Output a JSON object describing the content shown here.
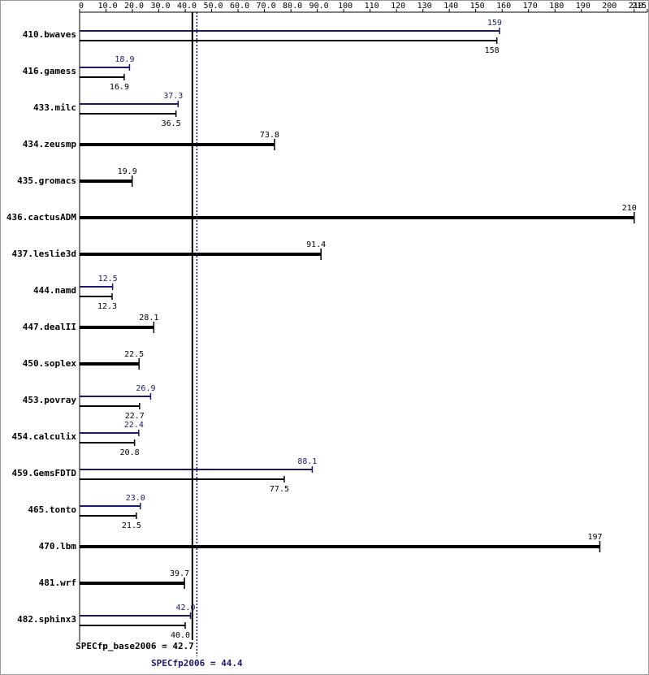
{
  "chart_data": {
    "type": "bar",
    "orientation": "horizontal",
    "categories": [
      "410.bwaves",
      "416.gamess",
      "433.milc",
      "434.zeusmp",
      "435.gromacs",
      "436.cactusADM",
      "437.leslie3d",
      "444.namd",
      "447.dealII",
      "450.soplex",
      "453.povray",
      "454.calculix",
      "459.GemsFDTD",
      "465.tonto",
      "470.lbm",
      "481.wrf",
      "482.sphinx3"
    ],
    "series": [
      {
        "name": "base",
        "color": "#000000",
        "values": [
          158,
          16.9,
          36.5,
          73.8,
          19.9,
          210,
          91.4,
          12.3,
          28.1,
          22.5,
          22.7,
          20.8,
          77.5,
          21.5,
          197,
          39.7,
          40.0
        ],
        "value_labels": [
          "158",
          "16.9",
          "36.5",
          "73.8",
          "19.9",
          "210",
          "91.4",
          "12.3",
          "28.1",
          "22.5",
          "22.7",
          "20.8",
          "77.5",
          "21.5",
          "197",
          "39.7",
          "40.0"
        ]
      },
      {
        "name": "peak",
        "color": "#191970",
        "values": [
          159,
          18.9,
          37.3,
          null,
          null,
          null,
          null,
          12.5,
          null,
          null,
          26.9,
          22.4,
          88.1,
          23.0,
          null,
          null,
          42.0
        ],
        "value_labels": [
          "159",
          "18.9",
          "37.3",
          null,
          null,
          null,
          null,
          "12.5",
          null,
          null,
          "26.9",
          "22.4",
          "88.1",
          "23.0",
          null,
          null,
          "42.0"
        ]
      }
    ],
    "xlim": [
      0,
      215
    ],
    "xticks": [
      0,
      {
        "value": 10,
        "label": "10.0"
      },
      {
        "value": 20,
        "label": "20.0"
      },
      {
        "value": 30,
        "label": "30.0"
      },
      {
        "value": 40,
        "label": "40.0"
      },
      {
        "value": 50,
        "label": "50.0"
      },
      {
        "value": 60,
        "label": "60.0"
      },
      {
        "value": 70,
        "label": "70.0"
      },
      {
        "value": 80,
        "label": "80.0"
      },
      {
        "value": 90,
        "label": "90.0"
      },
      100,
      110,
      120,
      130,
      140,
      150,
      160,
      170,
      180,
      190,
      200,
      210,
      215
    ],
    "reference_lines": [
      {
        "label": "SPECfp_base2006 = 42.7",
        "value": 42.7,
        "color": "#000000"
      },
      {
        "label": "SPECfp2006 = 44.4",
        "value": 44.4,
        "color": "#191970"
      }
    ]
  }
}
